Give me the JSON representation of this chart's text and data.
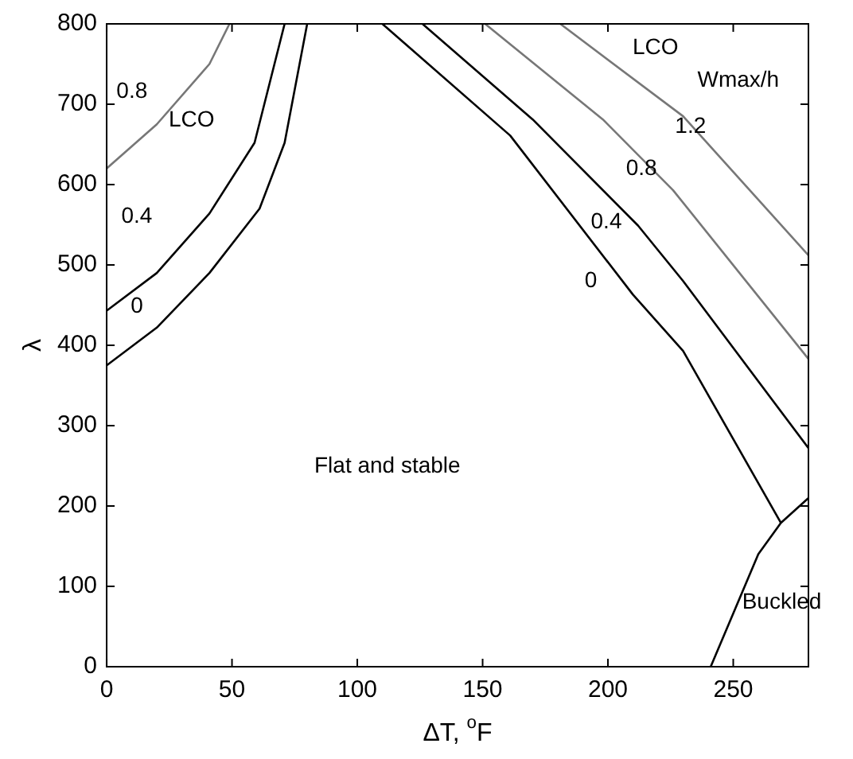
{
  "chart_data": {
    "type": "line",
    "xlabel": "ΔT, $^{o}$F",
    "ylabel": "λ",
    "xlim": [
      0,
      280
    ],
    "xticks": [
      0,
      50,
      100,
      150,
      200,
      250
    ],
    "ylim": [
      0,
      800
    ],
    "yticks": [
      0,
      100,
      200,
      300,
      400,
      500,
      600,
      700,
      800
    ],
    "grid": false,
    "legend": false,
    "marker": "none",
    "line_style": "solid",
    "series": [
      {
        "color": "#000000",
        "x": [
          0,
          20,
          41,
          61,
          71,
          80
        ],
        "values": [
          375,
          422,
          490,
          570,
          652,
          800
        ]
      },
      {
        "color": "#000000",
        "x": [
          0,
          20,
          41,
          59,
          71
        ],
        "values": [
          443,
          490,
          564,
          652,
          800
        ]
      },
      {
        "color": "#777777",
        "x": [
          0,
          20,
          41,
          49
        ],
        "values": [
          620,
          675,
          750,
          800
        ]
      },
      {
        "color": "#000000",
        "x": [
          110,
          161,
          210,
          230,
          269
        ],
        "values": [
          800,
          661,
          463,
          393,
          179
        ]
      },
      {
        "color": "#000000",
        "x": [
          126,
          170,
          212,
          230,
          280
        ],
        "values": [
          800,
          681,
          549,
          480,
          272
        ]
      },
      {
        "color": "#777777",
        "x": [
          151,
          198,
          226,
          280
        ],
        "values": [
          800,
          681,
          593,
          383
        ]
      },
      {
        "color": "#777777",
        "x": [
          181,
          230,
          280
        ],
        "values": [
          800,
          685,
          512
        ]
      },
      {
        "color": "#000000",
        "x": [
          241,
          260,
          269,
          280
        ],
        "values": [
          0,
          140,
          179,
          210
        ]
      }
    ],
    "annotations": [
      "0.8",
      "LCO",
      "0.4",
      "0",
      "LCO",
      "Wmax/h",
      "1.2",
      "0.8",
      "0.4",
      "0",
      "Flat and stable",
      "Buckled"
    ]
  }
}
